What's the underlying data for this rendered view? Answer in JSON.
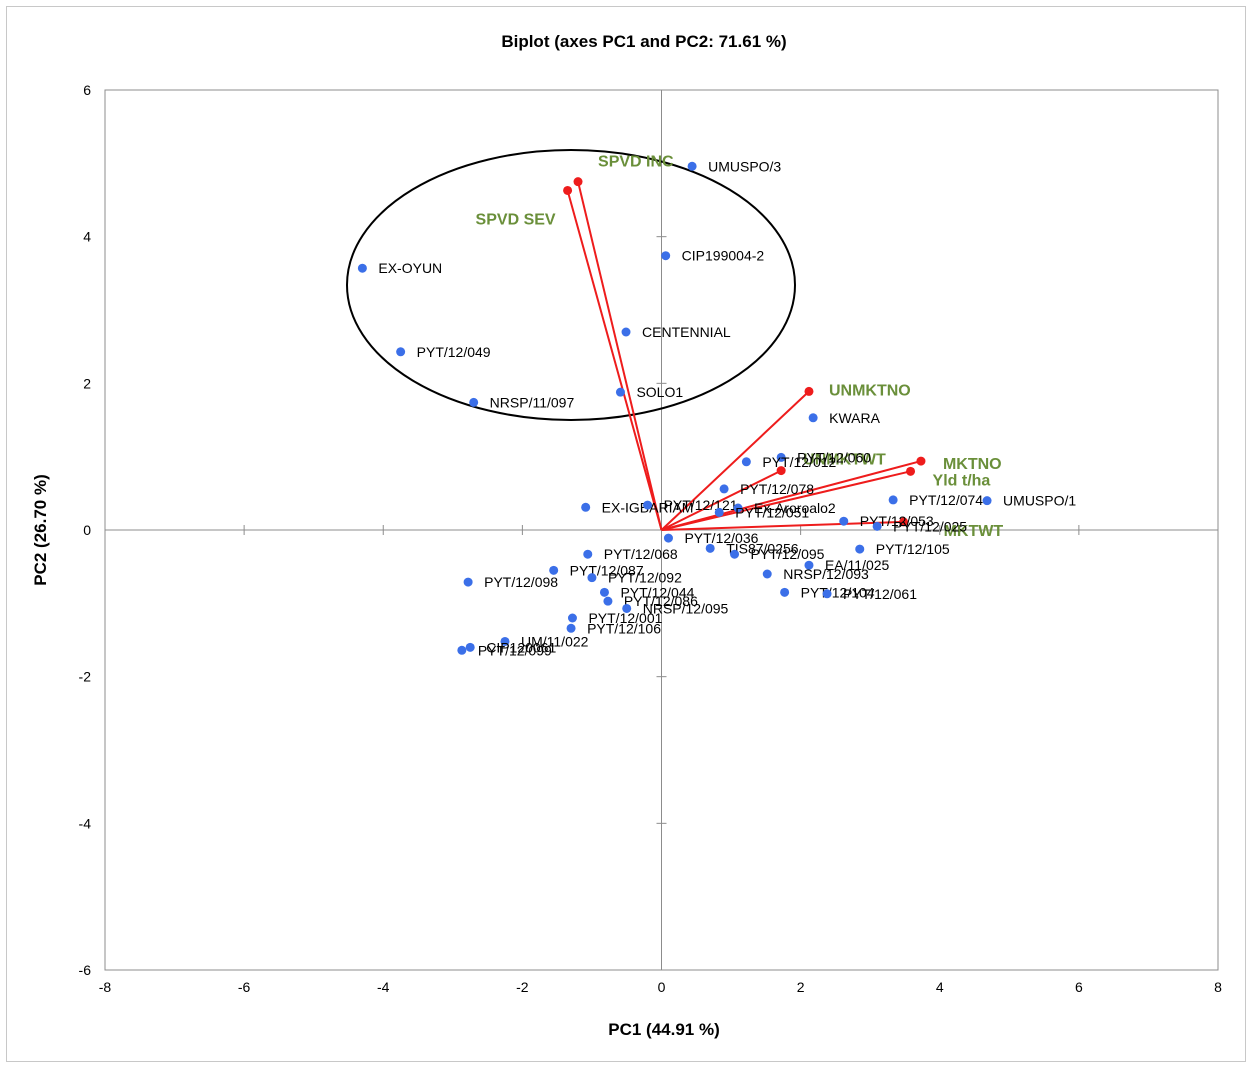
{
  "chart_data": {
    "type": "scatter",
    "title": "Biplot (axes PC1 and PC2: 71.61 %)",
    "xlabel": "PC1 (44.91 %)",
    "ylabel": "PC2 (26.70 %)",
    "xlim": [
      -8,
      8
    ],
    "ylim": [
      -6,
      6
    ],
    "x_ticks": [
      -8,
      -6,
      -4,
      -2,
      0,
      2,
      4,
      6,
      8
    ],
    "y_ticks": [
      -6,
      -4,
      -2,
      0,
      2,
      4,
      6
    ],
    "grid": false,
    "observation_color": "#3b6fe8",
    "variable_color": "#ee1c1c",
    "variable_label_color": "#6a8f3a",
    "observations": [
      {
        "label": "UMUSPO/3",
        "x": 0.44,
        "y": 4.96
      },
      {
        "label": "CIP199004-2",
        "x": 0.06,
        "y": 3.74
      },
      {
        "label": "EX-OYUN",
        "x": -4.3,
        "y": 3.57
      },
      {
        "label": "CENTENNIAL",
        "x": -0.51,
        "y": 2.7
      },
      {
        "label": "PYT/12/049",
        "x": -3.75,
        "y": 2.43
      },
      {
        "label": "SOLO1",
        "x": -0.59,
        "y": 1.88
      },
      {
        "label": "NRSP/11/097",
        "x": -2.7,
        "y": 1.74
      },
      {
        "label": "KWARA",
        "x": 2.18,
        "y": 1.53
      },
      {
        "label": "PYT/12/060",
        "x": 1.72,
        "y": 0.99
      },
      {
        "label": "PYT/12/012",
        "x": 1.22,
        "y": 0.93
      },
      {
        "label": "PYT/12/078",
        "x": 0.9,
        "y": 0.56
      },
      {
        "label": "PYT/12/074",
        "x": 3.33,
        "y": 0.41
      },
      {
        "label": "UMUSPO/1",
        "x": 4.68,
        "y": 0.4
      },
      {
        "label": "EX-IGBARIAM",
        "x": -1.09,
        "y": 0.31
      },
      {
        "label": "PYT/12/121",
        "x": -0.2,
        "y": 0.34
      },
      {
        "label": "Ex-Aroroalo2",
        "x": 1.1,
        "y": 0.3
      },
      {
        "label": "PYT/12/051",
        "x": 0.83,
        "y": 0.24
      },
      {
        "label": "PYT/12/053",
        "x": 2.62,
        "y": 0.12
      },
      {
        "label": "PYT/12/025",
        "x": 3.1,
        "y": 0.05
      },
      {
        "label": "PYT/12/036",
        "x": 0.1,
        "y": -0.11
      },
      {
        "label": "PYT/12/105",
        "x": 2.85,
        "y": -0.26
      },
      {
        "label": "PYT/12/068",
        "x": -1.06,
        "y": -0.33
      },
      {
        "label": "TIS87/0256",
        "x": 0.7,
        "y": -0.25
      },
      {
        "label": "PYT/12/095",
        "x": 1.05,
        "y": -0.33
      },
      {
        "label": "EA/11/025",
        "x": 2.12,
        "y": -0.48
      },
      {
        "label": "PYT/12/087",
        "x": -1.55,
        "y": -0.55
      },
      {
        "label": "PYT/12/092",
        "x": -1.0,
        "y": -0.65
      },
      {
        "label": "NRSP/12/093",
        "x": 1.52,
        "y": -0.6
      },
      {
        "label": "PYT/12/098",
        "x": -2.78,
        "y": -0.71
      },
      {
        "label": "PYT/12/044",
        "x": -0.82,
        "y": -0.85
      },
      {
        "label": "PYT/12/104",
        "x": 1.77,
        "y": -0.85
      },
      {
        "label": "PYT/12/061",
        "x": 2.38,
        "y": -0.87
      },
      {
        "label": "PYT/12/086",
        "x": -0.77,
        "y": -0.97
      },
      {
        "label": "NRSP/12/095",
        "x": -0.5,
        "y": -1.07
      },
      {
        "label": "PYT/12/106",
        "x": -1.3,
        "y": -1.34
      },
      {
        "label": "PYT/12/001",
        "x": -1.28,
        "y": -1.2
      },
      {
        "label": "UM/11/022",
        "x": -2.25,
        "y": -1.52
      },
      {
        "label": "CIP120061",
        "x": -2.75,
        "y": -1.6
      },
      {
        "label": "PYT/12/099",
        "x": -2.87,
        "y": -1.64
      }
    ],
    "variables": [
      {
        "label": "SPVD INC",
        "x": -1.2,
        "y": 4.75
      },
      {
        "label": "SPVD SEV",
        "x": -1.35,
        "y": 4.63
      },
      {
        "label": "UNMKTNO",
        "x": 2.12,
        "y": 1.89
      },
      {
        "label": "MKTNO",
        "x": 3.73,
        "y": 0.94
      },
      {
        "label": "UNMKTWT",
        "x": 1.72,
        "y": 0.81
      },
      {
        "label": "Yld t/ha",
        "x": 3.58,
        "y": 0.8
      },
      {
        "label": "MKTWT",
        "x": 3.48,
        "y": 0.11
      }
    ]
  }
}
